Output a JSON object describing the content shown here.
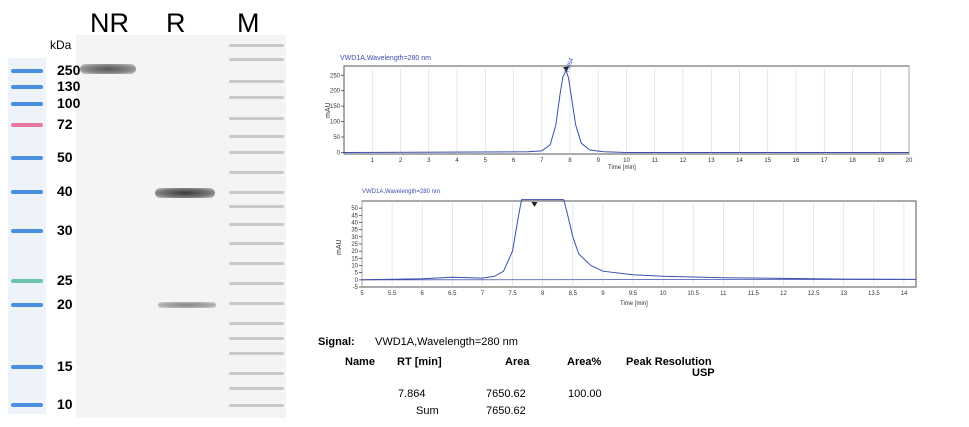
{
  "gel": {
    "kda_label": "kDa",
    "lanes": [
      "NR",
      "R",
      "M"
    ],
    "mw_markers": [
      "250",
      "130",
      "100",
      "72",
      "50",
      "40",
      "30",
      "25",
      "20",
      "15",
      "10"
    ],
    "ladder_colors": [
      "#4a8fe0",
      "#4a8fe0",
      "#4a8fe0",
      "#e87aa0",
      "#4a8fe0",
      "#4a8fe0",
      "#4a8fe0",
      "#6fc0b0",
      "#4a8fe0",
      "#4a8fe0",
      "#4a8fe0"
    ]
  },
  "chart_data": [
    {
      "type": "line",
      "title": "VWD1A,Wavelength=280 nm",
      "xlabel": "Time [min]",
      "ylabel": "mAU",
      "xlim": [
        0,
        20
      ],
      "ylim": [
        -5,
        280
      ],
      "xticks": [
        "1",
        "2",
        "3",
        "4",
        "5",
        "6",
        "7",
        "8",
        "9",
        "10",
        "11",
        "12",
        "13",
        "14",
        "15",
        "16",
        "17",
        "18",
        "19",
        "20"
      ],
      "yticks": [
        "0",
        "50",
        "100",
        "150",
        "200",
        "250"
      ],
      "peak": {
        "x": 7.864,
        "y": 265,
        "label": "7.864"
      },
      "series": [
        {
          "x": [
            0,
            6.5,
            7.0,
            7.3,
            7.5,
            7.65,
            7.75,
            7.864,
            7.95,
            8.05,
            8.2,
            8.4,
            8.7,
            9.2,
            10,
            20
          ],
          "y": [
            0,
            2,
            5,
            25,
            90,
            190,
            245,
            265,
            240,
            180,
            90,
            30,
            8,
            2,
            0,
            0
          ]
        }
      ]
    },
    {
      "type": "line",
      "title": "VWD1A,Wavelength=280 nm",
      "xlabel": "Time [min]",
      "ylabel": "mAU",
      "xlim": [
        5,
        14.2
      ],
      "ylim": [
        -5,
        55
      ],
      "xticks": [
        "5",
        "5.5",
        "6",
        "6.5",
        "7",
        "7.5",
        "8",
        "8.5",
        "9",
        "9.5",
        "10",
        "10.5",
        "11",
        "11.5",
        "12",
        "12.5",
        "13",
        "13.5",
        "14"
      ],
      "yticks": [
        "-5",
        "0",
        "5",
        "10",
        "15",
        "20",
        "25",
        "30",
        "35",
        "40",
        "45",
        "50"
      ],
      "peak": {
        "x": 7.864,
        "label": ""
      },
      "series": [
        {
          "x": [
            5,
            6,
            6.5,
            6.8,
            7.0,
            7.2,
            7.35,
            7.5,
            7.6,
            7.65,
            8.35,
            8.4,
            8.5,
            8.6,
            8.8,
            9.0,
            9.5,
            10,
            11,
            12,
            13,
            14.2
          ],
          "y": [
            0,
            0.8,
            1.8,
            1.5,
            1.2,
            2.5,
            6,
            20,
            45,
            56,
            56,
            48,
            30,
            18,
            10,
            6,
            3.5,
            2.5,
            1.5,
            1,
            0.5,
            0.3
          ]
        }
      ]
    }
  ],
  "signal_table": {
    "signal_label": "Signal:",
    "signal_value": "VWD1A,Wavelength=280 nm",
    "headers": [
      "Name",
      "RT [min]",
      "Area",
      "Area%",
      "Peak Resolution",
      "USP"
    ],
    "rows": [
      {
        "rt": "7.864",
        "area": "7650.62",
        "pct": "100.00"
      },
      {
        "rt": "Sum",
        "area": "7650.62",
        "pct": ""
      }
    ]
  }
}
